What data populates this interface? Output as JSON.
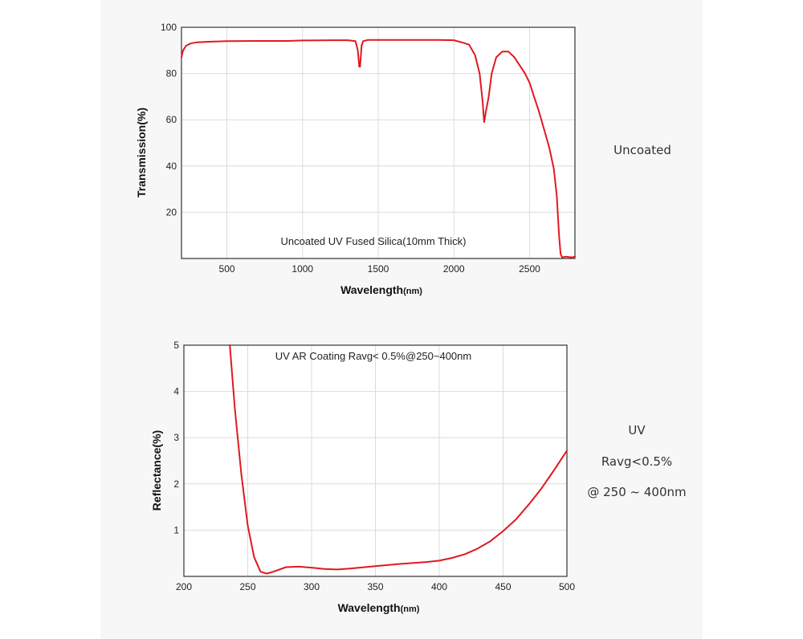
{
  "side_notes": {
    "chart1": "Uncoated",
    "chart2_lines": [
      "UV",
      "Ravg<0.5%",
      "@ 250 ~ 400nm"
    ]
  },
  "colors": {
    "curve": "#e0191f",
    "grid": "#dcdcdc",
    "frame": "#333333"
  },
  "chart_data": [
    {
      "type": "line",
      "annotation": "Uncoated UV Fused Silica(10mm Thick)",
      "xlabel": "Wavelength",
      "xlabel_unit": "(nm)",
      "ylabel": "Transmission(%)",
      "xlim": [
        200,
        2800
      ],
      "ylim": [
        0,
        100
      ],
      "xticks": [
        500,
        1000,
        1500,
        2000,
        2500
      ],
      "yticks": [
        20,
        40,
        60,
        80,
        100
      ],
      "grid": true,
      "series": [
        {
          "x": [
            200,
            210,
            230,
            260,
            300,
            400,
            500,
            700,
            900,
            1000,
            1200,
            1300,
            1350,
            1365,
            1375,
            1380,
            1390,
            1400,
            1430,
            1500,
            1700,
            1900,
            2000,
            2050,
            2100,
            2140,
            2170,
            2190,
            2200,
            2205,
            2210,
            2230,
            2250,
            2280,
            2320,
            2360,
            2400,
            2430,
            2470,
            2500,
            2530,
            2560,
            2600,
            2630,
            2660,
            2680,
            2695,
            2705,
            2715,
            2740,
            2780,
            2800
          ],
          "y": [
            87,
            90,
            92,
            93,
            93.5,
            93.8,
            94,
            94.1,
            94.1,
            94.3,
            94.4,
            94.4,
            94,
            90,
            83,
            83,
            92,
            94,
            94.5,
            94.5,
            94.5,
            94.5,
            94.4,
            93.5,
            92.5,
            88,
            80,
            68,
            59,
            61,
            63,
            70,
            80,
            87,
            89.5,
            89.5,
            87,
            84,
            80,
            76,
            70,
            64,
            55,
            48,
            39,
            27,
            10,
            2,
            0.5,
            0.8,
            0.5,
            0.8
          ]
        }
      ]
    },
    {
      "type": "line",
      "annotation": "UV AR Coating Ravg< 0.5%@250~400nm",
      "xlabel": "Wavelength",
      "xlabel_unit": "(nm)",
      "ylabel": "Reflectance(%)",
      "xlim": [
        200,
        500
      ],
      "ylim": [
        0,
        5
      ],
      "xticks": [
        200,
        250,
        300,
        350,
        400,
        450,
        500
      ],
      "yticks": [
        1,
        2,
        3,
        4,
        5
      ],
      "grid": true,
      "series": [
        {
          "x": [
            236,
            240,
            245,
            250,
            255,
            260,
            265,
            270,
            280,
            290,
            300,
            310,
            320,
            330,
            350,
            370,
            390,
            400,
            410,
            420,
            430,
            440,
            450,
            460,
            470,
            480,
            490,
            500
          ],
          "y": [
            5,
            3.6,
            2.2,
            1.1,
            0.42,
            0.1,
            0.06,
            0.1,
            0.2,
            0.21,
            0.19,
            0.16,
            0.15,
            0.17,
            0.22,
            0.27,
            0.31,
            0.34,
            0.4,
            0.48,
            0.6,
            0.76,
            0.98,
            1.23,
            1.55,
            1.9,
            2.3,
            2.72
          ]
        }
      ]
    }
  ]
}
